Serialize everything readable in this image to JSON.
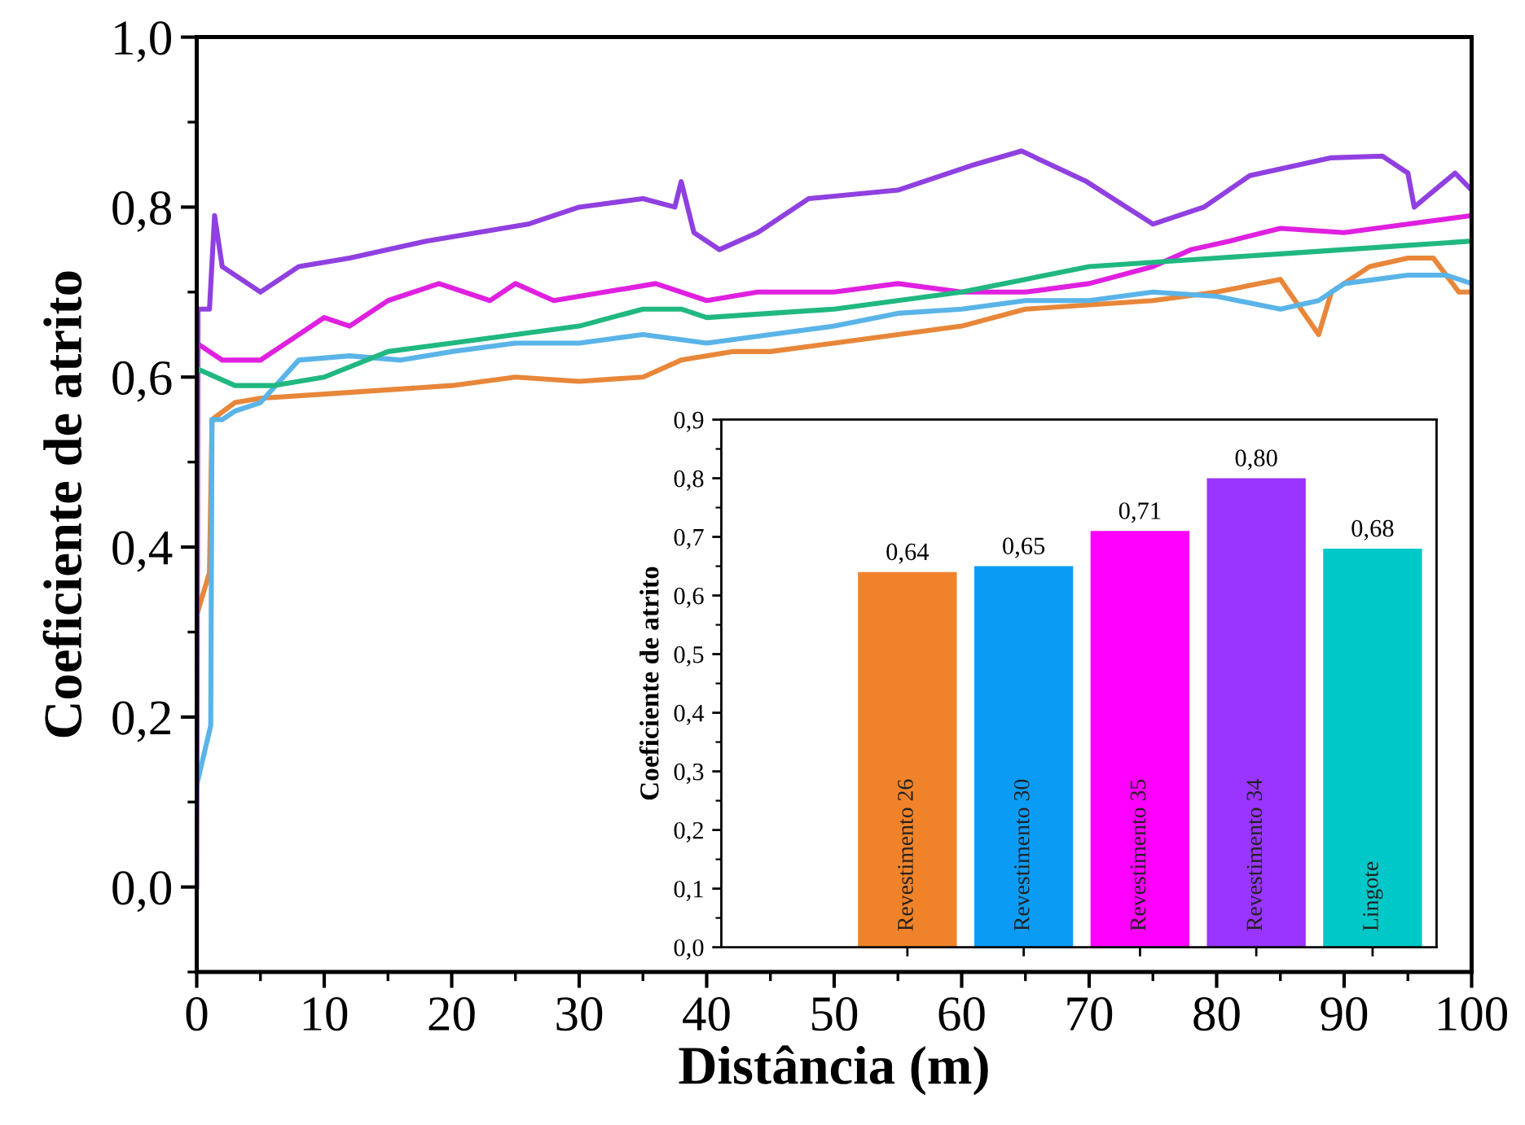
{
  "chart_data": [
    {
      "type": "line",
      "xlabel": "Distância (m)",
      "ylabel": "Coeficiente de atrito",
      "xlim": [
        0,
        100
      ],
      "xticks": [
        0,
        10,
        20,
        30,
        40,
        50,
        60,
        70,
        80,
        90,
        100
      ],
      "ylim": [
        -0.1,
        1.0
      ],
      "yticks": [
        {
          "value": 0.0,
          "label": "0,0"
        },
        {
          "value": 0.2,
          "label": "0,2"
        },
        {
          "value": 0.4,
          "label": "0,4"
        },
        {
          "value": 0.6,
          "label": "0,6"
        },
        {
          "value": 0.8,
          "label": "0,8"
        },
        {
          "value": 1.0,
          "label": "1,0"
        }
      ],
      "grid": false,
      "legend": false,
      "series": [
        {
          "color": "#e8873a",
          "x": [
            0,
            1,
            1.2,
            3,
            5,
            10,
            15,
            20,
            25,
            30,
            35,
            38,
            42,
            45,
            50,
            55,
            60,
            65,
            70,
            75,
            80,
            85,
            88,
            89,
            92,
            95,
            97,
            99,
            100
          ],
          "values": [
            0.32,
            0.37,
            0.55,
            0.57,
            0.575,
            0.58,
            0.585,
            0.59,
            0.6,
            0.595,
            0.6,
            0.62,
            0.63,
            0.63,
            0.64,
            0.65,
            0.66,
            0.68,
            0.685,
            0.69,
            0.7,
            0.715,
            0.65,
            0.7,
            0.73,
            0.74,
            0.74,
            0.7,
            0.7
          ]
        },
        {
          "color": "#5ab4e8",
          "x": [
            0,
            1.1,
            1.2,
            2,
            3,
            5,
            8,
            12,
            16,
            20,
            25,
            30,
            35,
            40,
            45,
            50,
            55,
            60,
            65,
            70,
            75,
            80,
            85,
            88,
            90,
            95,
            98,
            100
          ],
          "values": [
            0.12,
            0.19,
            0.55,
            0.55,
            0.56,
            0.57,
            0.62,
            0.625,
            0.62,
            0.63,
            0.64,
            0.64,
            0.65,
            0.64,
            0.65,
            0.66,
            0.675,
            0.68,
            0.69,
            0.69,
            0.7,
            0.695,
            0.68,
            0.69,
            0.71,
            0.72,
            0.72,
            0.71
          ]
        },
        {
          "color": "#e020e0",
          "x": [
            0,
            2,
            5,
            7,
            10,
            12,
            15,
            19,
            23,
            25,
            28,
            32,
            36,
            40,
            44,
            50,
            55,
            60,
            65,
            70,
            75,
            78,
            81,
            85,
            90,
            95,
            100
          ],
          "values": [
            0.64,
            0.62,
            0.62,
            0.64,
            0.67,
            0.66,
            0.69,
            0.71,
            0.69,
            0.71,
            0.69,
            0.7,
            0.71,
            0.69,
            0.7,
            0.7,
            0.71,
            0.7,
            0.7,
            0.71,
            0.73,
            0.75,
            0.76,
            0.775,
            0.77,
            0.78,
            0.79
          ]
        },
        {
          "color": "#9040e0",
          "x": [
            0,
            0.1,
            1,
            1.4,
            2,
            5,
            8,
            12,
            18,
            22,
            26,
            30,
            35,
            37.5,
            38,
            39,
            41,
            44,
            48,
            55,
            61,
            64.7,
            69.8,
            75,
            79,
            82.6,
            89,
            93,
            95,
            95.5,
            98.7,
            100
          ],
          "values": [
            0.0,
            0.68,
            0.68,
            0.79,
            0.73,
            0.7,
            0.73,
            0.74,
            0.76,
            0.77,
            0.78,
            0.8,
            0.81,
            0.8,
            0.83,
            0.77,
            0.75,
            0.77,
            0.81,
            0.82,
            0.85,
            0.866,
            0.83,
            0.78,
            0.8,
            0.837,
            0.858,
            0.86,
            0.84,
            0.8,
            0.84,
            0.82
          ]
        },
        {
          "color": "#20b880",
          "x": [
            0,
            3,
            6,
            10,
            15,
            20,
            25,
            30,
            35,
            38,
            40,
            45,
            50,
            55,
            60,
            65,
            70,
            75,
            80,
            85,
            90,
            95,
            100
          ],
          "values": [
            0.61,
            0.59,
            0.59,
            0.6,
            0.63,
            0.64,
            0.65,
            0.66,
            0.68,
            0.68,
            0.67,
            0.675,
            0.68,
            0.69,
            0.7,
            0.715,
            0.73,
            0.735,
            0.74,
            0.745,
            0.75,
            0.755,
            0.76
          ]
        }
      ]
    },
    {
      "type": "bar",
      "ylabel": "Coeficiente de atrito",
      "categories": [
        "Revestimento 26",
        "Revestimento 30",
        "Revestimento 35",
        "Revestimento 34",
        "Lingote"
      ],
      "values": [
        0.64,
        0.65,
        0.71,
        0.8,
        0.68
      ],
      "colors": [
        "#f0832a",
        "#0a9cf5",
        "#ff00ff",
        "#9a35ff",
        "#00c8c8"
      ],
      "value_labels": [
        "0,64",
        "0,65",
        "0,71",
        "0,80",
        "0,68"
      ],
      "ylim": [
        0,
        0.9
      ],
      "yticks": [
        {
          "value": 0.0,
          "label": "0,0"
        },
        {
          "value": 0.1,
          "label": "0,1"
        },
        {
          "value": 0.2,
          "label": "0,2"
        },
        {
          "value": 0.3,
          "label": "0,3"
        },
        {
          "value": 0.4,
          "label": "0,4"
        },
        {
          "value": 0.5,
          "label": "0,5"
        },
        {
          "value": 0.6,
          "label": "0,6"
        },
        {
          "value": 0.7,
          "label": "0,7"
        },
        {
          "value": 0.8,
          "label": "0,8"
        },
        {
          "value": 0.9,
          "label": "0,9"
        }
      ],
      "tick_labels": "y",
      "grid": false,
      "legend": false
    }
  ]
}
